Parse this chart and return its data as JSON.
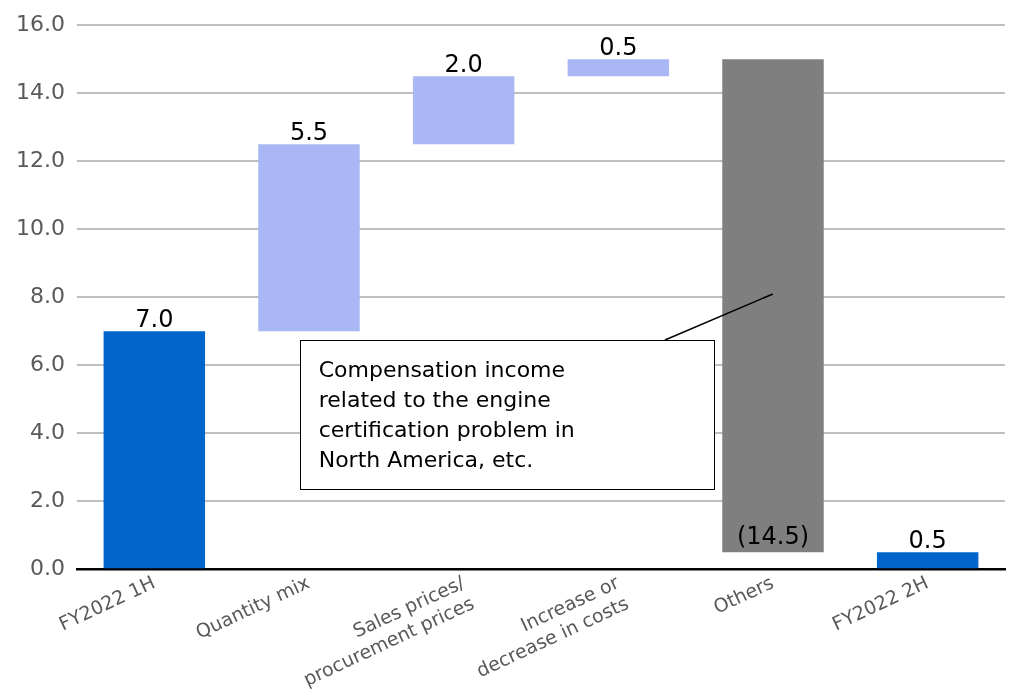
{
  "chart_data": {
    "type": "bar",
    "categories": [
      "FY2022 1H",
      "Quantity mix",
      "Sales prices/\nprocurement prices",
      "Increase or\ndecrease in costs",
      "Others",
      "FY2022 2H"
    ],
    "values": [
      7.0,
      5.5,
      2.0,
      0.5,
      -14.5,
      0.5
    ],
    "base": [
      0,
      7.0,
      12.5,
      14.5,
      15.0,
      0
    ],
    "colors": [
      "#0066cc",
      "#a9b8f5",
      "#a9b8f5",
      "#a9b8f5",
      "#7f7f7f",
      "#0066cc"
    ],
    "value_labels": [
      "7.0",
      "5.5",
      "2.0",
      "0.5",
      "(14.5)",
      "0.5"
    ],
    "ylim": [
      0,
      16
    ],
    "yticks": [
      {
        "value": 0,
        "label": "0.0"
      },
      {
        "value": 2,
        "label": "2.0"
      },
      {
        "value": 4,
        "label": "4.0"
      },
      {
        "value": 6,
        "label": "6.0"
      },
      {
        "value": 8,
        "label": "8.0"
      },
      {
        "value": 10,
        "label": "10.0"
      },
      {
        "value": 12,
        "label": "12.0"
      },
      {
        "value": 14,
        "label": "14.0"
      },
      {
        "value": 16,
        "label": "16.0"
      }
    ],
    "grid": "y",
    "annotations": [
      "Compensation income related to the engine certification problem in North America, etc."
    ]
  }
}
